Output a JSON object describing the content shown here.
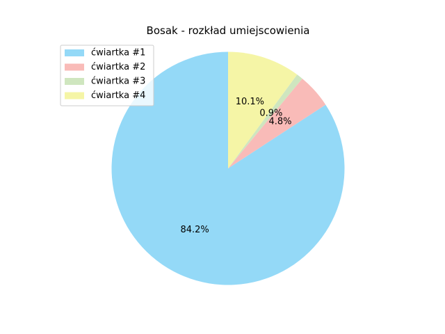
{
  "chart_data": {
    "type": "pie",
    "title": "Bosak - rozkład umiejscowienia",
    "labels": [
      "ćwiartka #1",
      "ćwiartka #2",
      "ćwiartka #3",
      "ćwiartka #4"
    ],
    "values": [
      84.2,
      4.8,
      0.9,
      10.1
    ],
    "value_labels": [
      "84.2%",
      "4.8%",
      "0.9%",
      "10.1%"
    ],
    "colors": [
      "#94d9f7",
      "#f9bbb8",
      "#cfe6bf",
      "#f5f5a6"
    ],
    "start_angle_deg": 90,
    "direction": "counterclockwise",
    "legend_position": "top-left"
  }
}
